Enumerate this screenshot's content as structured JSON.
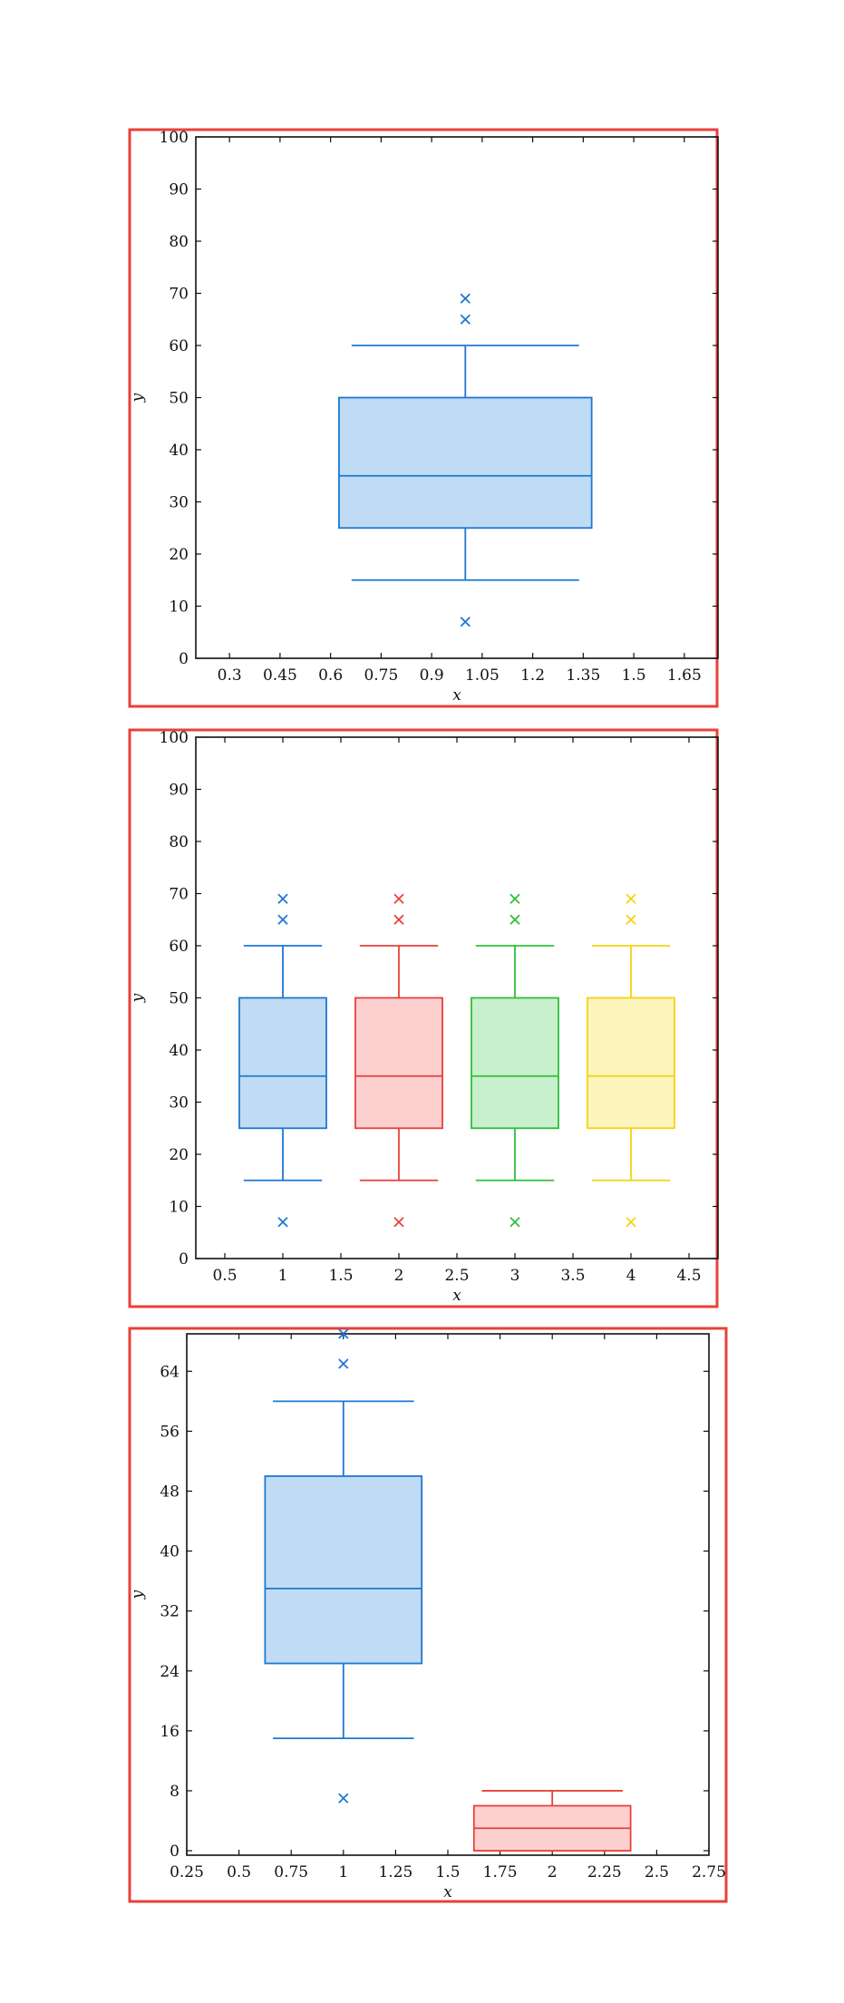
{
  "chart_data": [
    {
      "type": "box",
      "xlabel": "x",
      "ylabel": "y",
      "xlim": [
        0.2,
        1.75
      ],
      "ylim": [
        0,
        100
      ],
      "xticks": [
        0.3,
        0.45,
        0.6,
        0.75,
        0.9,
        1.05,
        1.2,
        1.35,
        1.5,
        1.65
      ],
      "xtick_labels": [
        "0.3",
        "0.45",
        "0.6",
        "0.75",
        "0.9",
        "1.05",
        "1.2",
        "1.35",
        "1.5",
        "1.65"
      ],
      "yticks": [
        0,
        10,
        20,
        30,
        40,
        50,
        60,
        70,
        80,
        90,
        100
      ],
      "ytick_labels": [
        "0",
        "10",
        "20",
        "30",
        "40",
        "50",
        "60",
        "70",
        "80",
        "90",
        "100"
      ],
      "box_width": 0.75,
      "series": [
        {
          "x": 1,
          "q1": 25,
          "median": 35,
          "q3": 50,
          "whisker_low": 15,
          "whisker_high": 60,
          "outliers": [
            7,
            65,
            69
          ],
          "color": "#1f77d4",
          "fill": "#c0dcf4"
        }
      ]
    },
    {
      "type": "box",
      "xlabel": "x",
      "ylabel": "y",
      "xlim": [
        0.25,
        4.75
      ],
      "ylim": [
        0,
        100
      ],
      "xticks": [
        0.5,
        1,
        1.5,
        2,
        2.5,
        3,
        3.5,
        4,
        4.5
      ],
      "xtick_labels": [
        "0.5",
        "1",
        "1.5",
        "2",
        "2.5",
        "3",
        "3.5",
        "4",
        "4.5"
      ],
      "yticks": [
        0,
        10,
        20,
        30,
        40,
        50,
        60,
        70,
        80,
        90,
        100
      ],
      "ytick_labels": [
        "0",
        "10",
        "20",
        "30",
        "40",
        "50",
        "60",
        "70",
        "80",
        "90",
        "100"
      ],
      "box_width": 0.75,
      "series": [
        {
          "x": 1,
          "q1": 25,
          "median": 35,
          "q3": 50,
          "whisker_low": 15,
          "whisker_high": 60,
          "outliers": [
            7,
            65,
            69
          ],
          "color": "#1f77d4",
          "fill": "#c0dcf4"
        },
        {
          "x": 2,
          "q1": 25,
          "median": 35,
          "q3": 50,
          "whisker_low": 15,
          "whisker_high": 60,
          "outliers": [
            7,
            65,
            69
          ],
          "color": "#e8403a",
          "fill": "#fdd0d0"
        },
        {
          "x": 3,
          "q1": 25,
          "median": 35,
          "q3": 50,
          "whisker_low": 15,
          "whisker_high": 60,
          "outliers": [
            7,
            65,
            69
          ],
          "color": "#2fbf3a",
          "fill": "#c8f0cc"
        },
        {
          "x": 4,
          "q1": 25,
          "median": 35,
          "q3": 50,
          "whisker_low": 15,
          "whisker_high": 60,
          "outliers": [
            7,
            65,
            69
          ],
          "color": "#f5d30f",
          "fill": "#fcf4bd"
        }
      ]
    },
    {
      "type": "box",
      "xlabel": "x",
      "ylabel": "y",
      "xlim": [
        0.25,
        2.75
      ],
      "ylim": [
        -0.6,
        69
      ],
      "xticks": [
        0.25,
        0.5,
        0.75,
        1,
        1.25,
        1.5,
        1.75,
        2,
        2.25,
        2.5,
        2.75
      ],
      "xtick_labels": [
        "0.25",
        "0.5",
        "0.75",
        "1",
        "1.25",
        "1.5",
        "1.75",
        "2",
        "2.25",
        "2.5",
        "2.75"
      ],
      "yticks": [
        0,
        8,
        16,
        24,
        32,
        40,
        48,
        56,
        64
      ],
      "ytick_labels": [
        "0",
        "8",
        "16",
        "24",
        "32",
        "40",
        "48",
        "56",
        "64"
      ],
      "box_width": 0.75,
      "series": [
        {
          "x": 1,
          "q1": 25,
          "median": 35,
          "q3": 50,
          "whisker_low": 15,
          "whisker_high": 60,
          "outliers": [
            7,
            65,
            69
          ],
          "color": "#1f77d4",
          "fill": "#c0dcf4"
        },
        {
          "x": 2,
          "q1": 0,
          "median": 3,
          "q3": 6,
          "whisker_low": 0,
          "whisker_high": 8,
          "outliers": [],
          "color": "#e8403a",
          "fill": "#fdd0d0"
        }
      ]
    }
  ]
}
